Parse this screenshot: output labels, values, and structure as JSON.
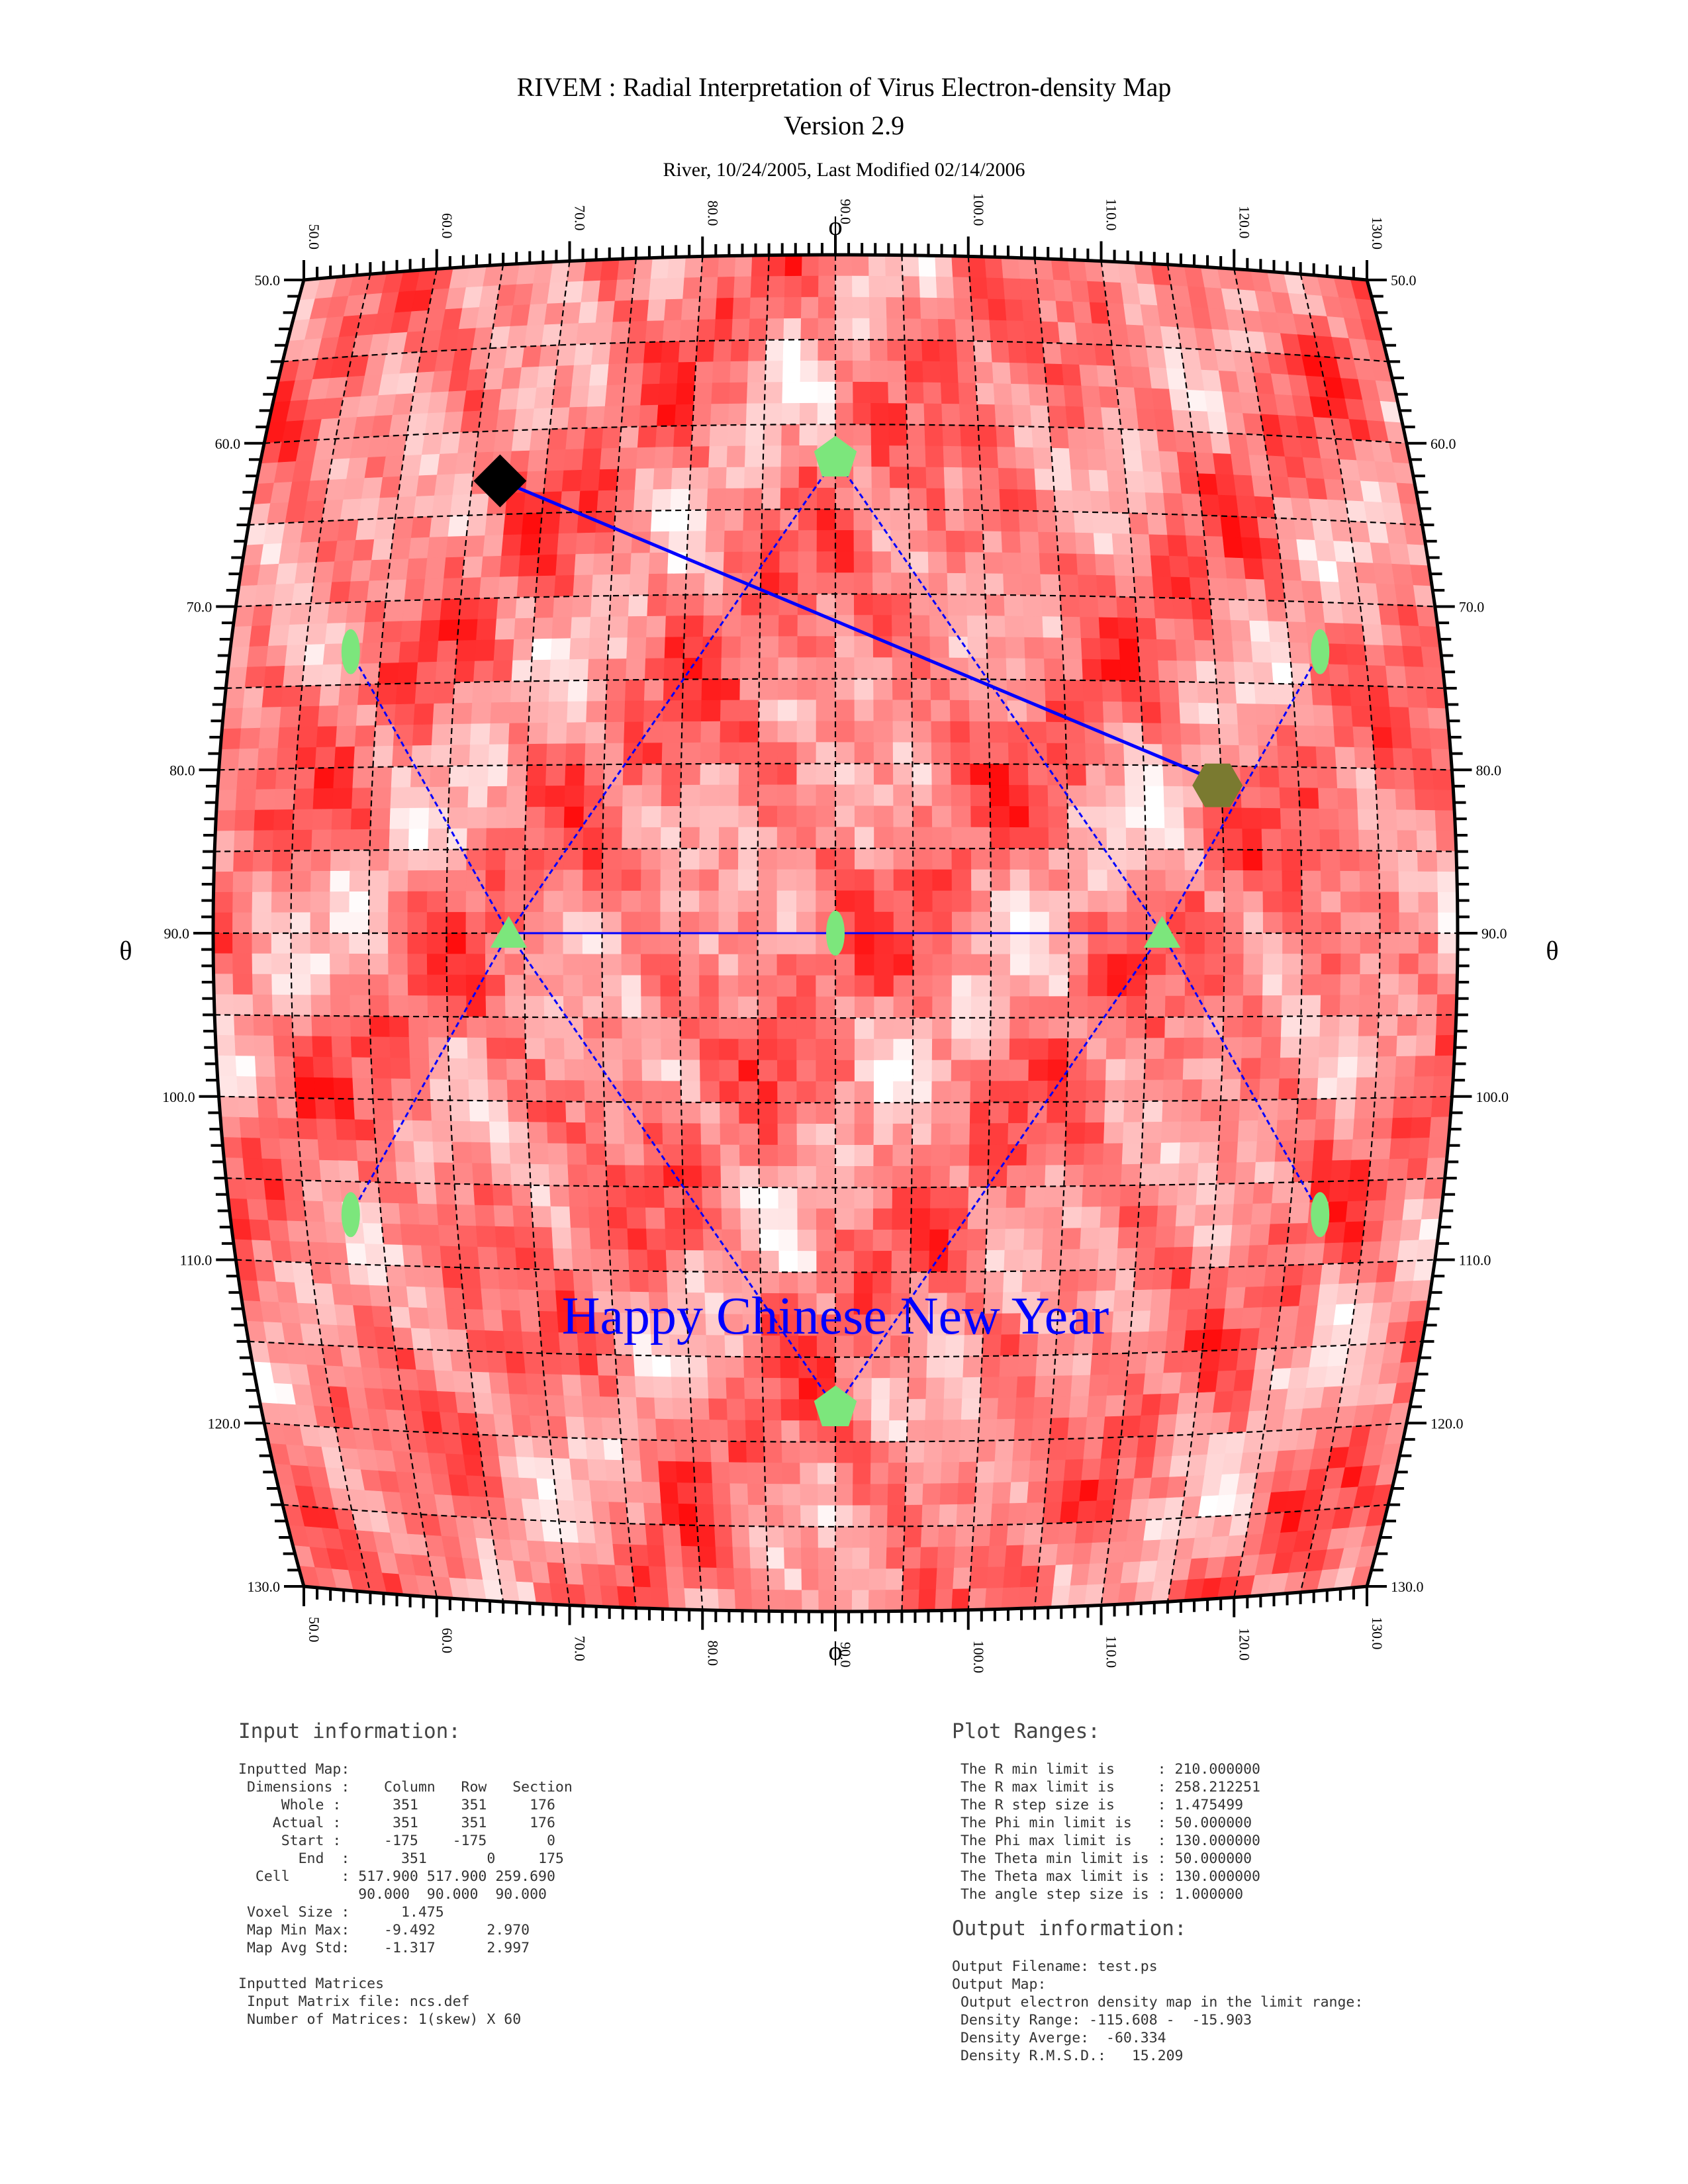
{
  "header": {
    "title": "RIVEM : Radial Interpretation of Virus Electron-density Map",
    "version": "Version 2.9",
    "credit": "River, 10/24/2005, Last Modified 02/14/2006"
  },
  "map": {
    "phi_symbol": "ϕ",
    "theta_symbol": "θ",
    "annotation": "Happy Chinese New Year",
    "colors": {
      "density_high": "#ff0000",
      "density_low": "#ffffff",
      "grid": "#000000",
      "symmetry_marker": "#7ce67c",
      "path_line": "#0000ff",
      "start_marker": "#000000",
      "end_marker": "#7a7a30",
      "annotation_text": "#0000ff"
    }
  },
  "chart_data": {
    "type": "heatmap",
    "projection": "cylindrical map in phi (horizontal) and theta (vertical)",
    "phi_range": [
      50.0,
      130.0
    ],
    "theta_range": [
      50.0,
      130.0
    ],
    "phi_ticks": [
      "50.0",
      "60.0",
      "70.0",
      "80.0",
      "90.0",
      "100.0",
      "110.0",
      "120.0",
      "130.0"
    ],
    "theta_ticks": [
      "50.0",
      "60.0",
      "70.0",
      "80.0",
      "90.0",
      "100.0",
      "110.0",
      "120.0",
      "130.0"
    ],
    "grid": true,
    "markers": [
      {
        "shape": "pentagon",
        "phi": 90.0,
        "theta": 62.0
      },
      {
        "shape": "pentagon",
        "phi": 90.0,
        "theta": 118.0
      },
      {
        "shape": "triangle",
        "phi": 69.0,
        "theta": 90.0
      },
      {
        "shape": "triangle",
        "phi": 111.0,
        "theta": 90.0
      },
      {
        "shape": "ellipse",
        "phi": 90.0,
        "theta": 90.0
      },
      {
        "shape": "ellipse",
        "phi": 58.0,
        "theta": 73.0
      },
      {
        "shape": "ellipse",
        "phi": 122.0,
        "theta": 73.0
      },
      {
        "shape": "ellipse",
        "phi": 58.0,
        "theta": 107.0
      },
      {
        "shape": "ellipse",
        "phi": 122.0,
        "theta": 107.0
      }
    ],
    "symmetry_lines": [
      {
        "from": [
          90.0,
          62.0
        ],
        "to": [
          69.0,
          90.0
        ]
      },
      {
        "from": [
          90.0,
          62.0
        ],
        "to": [
          111.0,
          90.0
        ]
      },
      {
        "from": [
          90.0,
          118.0
        ],
        "to": [
          69.0,
          90.0
        ]
      },
      {
        "from": [
          90.0,
          118.0
        ],
        "to": [
          111.0,
          90.0
        ]
      },
      {
        "from": [
          58.0,
          73.0
        ],
        "to": [
          69.0,
          90.0
        ]
      },
      {
        "from": [
          58.0,
          107.0
        ],
        "to": [
          69.0,
          90.0
        ]
      },
      {
        "from": [
          122.0,
          73.0
        ],
        "to": [
          111.0,
          90.0
        ]
      },
      {
        "from": [
          122.0,
          107.0
        ],
        "to": [
          111.0,
          90.0
        ]
      },
      {
        "from": [
          69.0,
          90.0
        ],
        "to": [
          111.0,
          90.0
        ]
      }
    ],
    "path": {
      "start": {
        "phi": 67.0,
        "theta": 63.0,
        "shape": "diamond"
      },
      "end": {
        "phi": 115.0,
        "theta": 81.0,
        "shape": "hexagon"
      }
    },
    "density_range": [
      -115.608,
      -15.903
    ]
  },
  "input_info": {
    "heading": "Input information:",
    "lines": [
      "Inputted Map:",
      " Dimensions :    Column   Row   Section",
      "     Whole :      351     351     176",
      "    Actual :      351     351     176",
      "     Start :     -175    -175       0",
      "       End  :      351       0     175",
      "  Cell      : 517.900 517.900 259.690",
      "              90.000  90.000  90.000",
      " Voxel Size :      1.475",
      " Map Min Max:    -9.492      2.970",
      " Map Avg Std:    -1.317      2.997",
      "",
      "Inputted Matrices",
      " Input Matrix file: ncs.def",
      " Number of Matrices: 1(skew) X 60"
    ]
  },
  "plot_ranges": {
    "heading": "Plot Ranges:",
    "lines": [
      " The R min limit is     : 210.000000",
      " The R max limit is     : 258.212251",
      " The R step size is     : 1.475499",
      " The Phi min limit is   : 50.000000",
      " The Phi max limit is   : 130.000000",
      " The Theta min limit is : 50.000000",
      " The Theta max limit is : 130.000000",
      " The angle step size is : 1.000000"
    ]
  },
  "output_info": {
    "heading": "Output information:",
    "lines": [
      "Output Filename: test.ps",
      "Output Map:",
      " Output electron density map in the limit range:",
      " Density Range: -115.608 -  -15.903",
      " Density Averge:  -60.334",
      " Density R.M.S.D.:   15.209"
    ]
  }
}
